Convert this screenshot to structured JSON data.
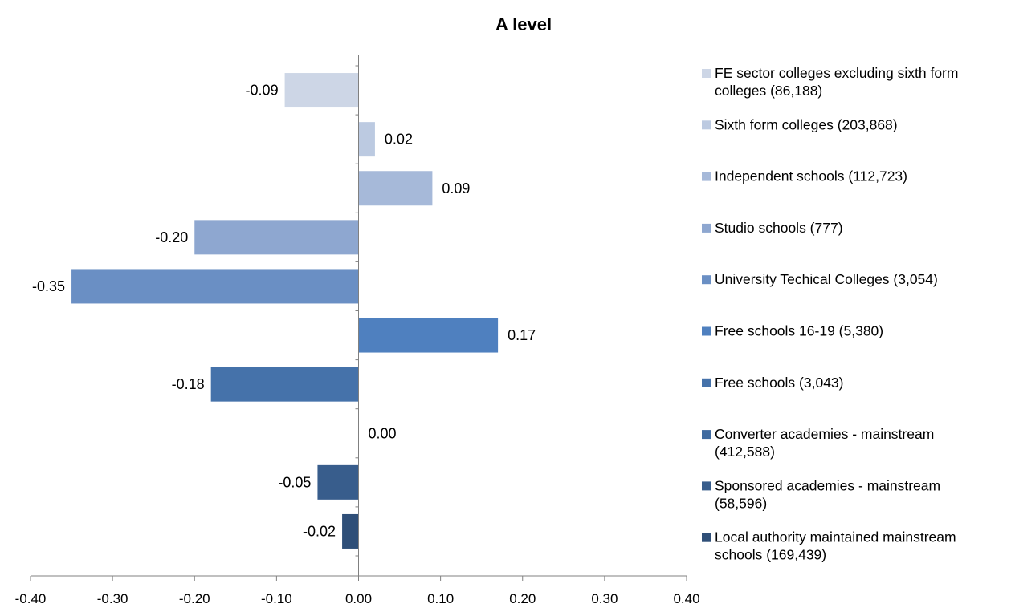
{
  "chart_data": {
    "type": "bar",
    "orientation": "horizontal",
    "title": "A level",
    "xlabel": "",
    "ylabel": "",
    "xlim": [
      -0.4,
      0.4
    ],
    "x_ticks": [
      "-0.40",
      "-0.30",
      "-0.20",
      "-0.10",
      "0.00",
      "0.10",
      "0.20",
      "0.30",
      "0.40"
    ],
    "grid": false,
    "legend_position": "right",
    "series": [
      {
        "name": "FE sector colleges excluding sixth form colleges (86,188)",
        "legend_lines": [
          "FE sector colleges excluding sixth form",
          "colleges (86,188)"
        ],
        "value": -0.09,
        "value_label": "-0.09",
        "color": "#cdd6e6"
      },
      {
        "name": "Sixth form colleges (203,868)",
        "legend_lines": [
          "Sixth form colleges (203,868)"
        ],
        "value": 0.02,
        "value_label": "0.02",
        "color": "#bccae1"
      },
      {
        "name": "Independent schools (112,723)",
        "legend_lines": [
          "Independent schools (112,723)"
        ],
        "value": 0.09,
        "value_label": "0.09",
        "color": "#a6b9d9"
      },
      {
        "name": "Studio schools (777)",
        "legend_lines": [
          "Studio schools (777)"
        ],
        "value": -0.2,
        "value_label": "-0.20",
        "color": "#8ea7d0"
      },
      {
        "name": "University Techical Colleges (3,054)",
        "legend_lines": [
          "University Techical Colleges (3,054)"
        ],
        "value": -0.35,
        "value_label": "-0.35",
        "color": "#6a8fc4"
      },
      {
        "name": "Free schools 16-19 (5,380)",
        "legend_lines": [
          "Free schools 16-19 (5,380)"
        ],
        "value": 0.17,
        "value_label": "0.17",
        "color": "#4f80bf"
      },
      {
        "name": "Free schools (3,043)",
        "legend_lines": [
          "Free schools (3,043)"
        ],
        "value": -0.18,
        "value_label": "-0.18",
        "color": "#4572aa"
      },
      {
        "name": "Converter academies - mainstream (412,588)",
        "legend_lines": [
          "Converter academies - mainstream",
          "(412,588)"
        ],
        "value": 0.0,
        "value_label": "0.00",
        "color": "#3f6aa0"
      },
      {
        "name": "Sponsored academies - mainstream (58,596)",
        "legend_lines": [
          "Sponsored academies - mainstream",
          "(58,596)"
        ],
        "value": -0.05,
        "value_label": "-0.05",
        "color": "#385d8c"
      },
      {
        "name": "Local authority maintained mainstream schools (169,439)",
        "legend_lines": [
          "Local authority maintained mainstream",
          "schools (169,439)"
        ],
        "value": -0.02,
        "value_label": "-0.02",
        "color": "#2f4f78"
      }
    ]
  }
}
